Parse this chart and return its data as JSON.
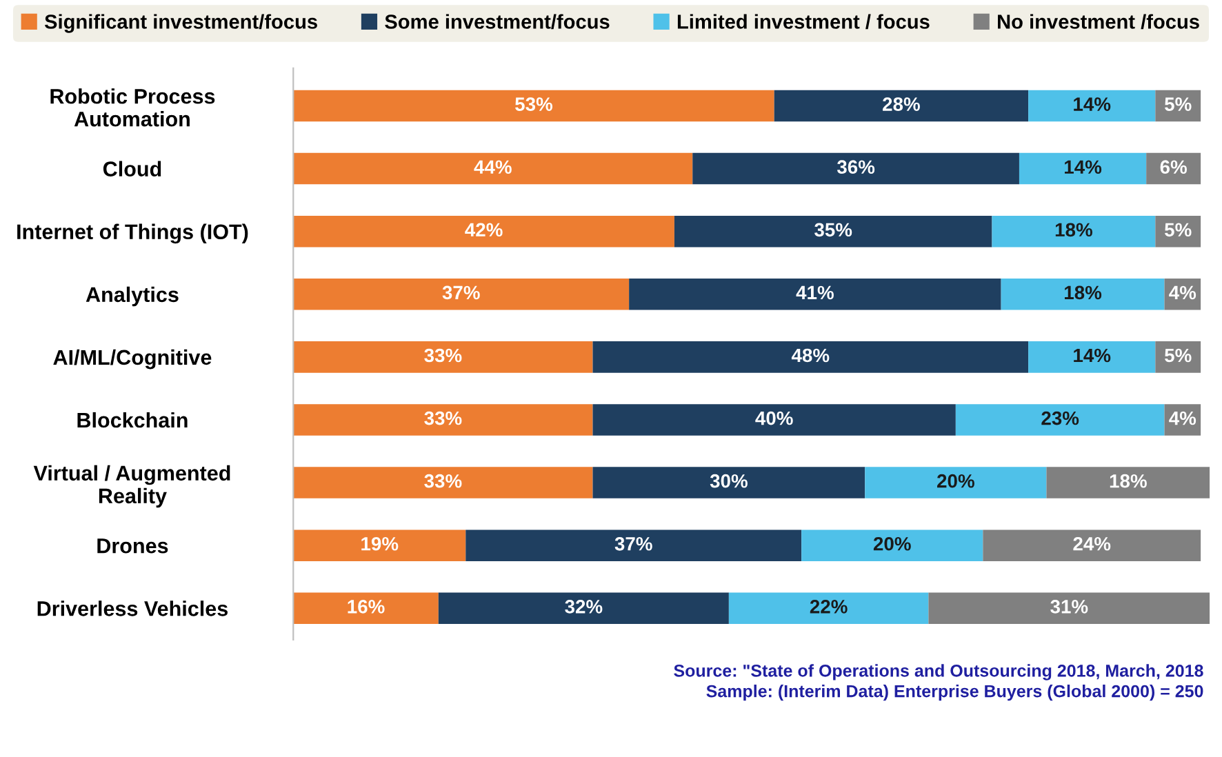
{
  "chart_data": {
    "type": "bar",
    "orientation": "horizontal",
    "stacked": true,
    "legend": "top",
    "grid": false,
    "categories": [
      "Robotic Process\nAutomation",
      "Cloud",
      "Internet of Things (IOT)",
      "Analytics",
      "AI/ML/Cognitive",
      "Blockchain",
      "Virtual / Augmented\nReality",
      "Drones",
      "Driverless Vehicles"
    ],
    "series": [
      {
        "name": "Significant investment/focus",
        "color": "#ed7d31",
        "values": [
          53,
          44,
          42,
          37,
          33,
          33,
          33,
          19,
          16
        ],
        "value_labels": [
          "53%",
          "44%",
          "42%",
          "37%",
          "33%",
          "33%",
          "33%",
          "19%",
          "16%"
        ]
      },
      {
        "name": "Some investment/focus",
        "color": "#1f3f60",
        "values": [
          28,
          36,
          35,
          41,
          48,
          40,
          30,
          37,
          32
        ],
        "value_labels": [
          "28%",
          "36%",
          "35%",
          "41%",
          "48%",
          "40%",
          "30%",
          "37%",
          "32%"
        ]
      },
      {
        "name": "Limited investment / focus",
        "color": "#4fc1e9",
        "values": [
          14,
          14,
          18,
          18,
          14,
          23,
          20,
          20,
          22
        ],
        "value_labels": [
          "14%",
          "14%",
          "18%",
          "18%",
          "14%",
          "23%",
          "20%",
          "20%",
          "22%"
        ]
      },
      {
        "name": "No investment /focus",
        "color": "#808080",
        "values": [
          5,
          6,
          5,
          4,
          5,
          4,
          18,
          24,
          31
        ],
        "value_labels": [
          "5%",
          "6%",
          "5%",
          "4%",
          "5%",
          "4%",
          "18%",
          "24%",
          "31%"
        ]
      }
    ],
    "annotations": [
      "Source: \"State of Operations and Outsourcing 2018, March, 2018",
      "Sample: (Interim Data) Enterprise Buyers (Global 2000) = 250"
    ]
  }
}
